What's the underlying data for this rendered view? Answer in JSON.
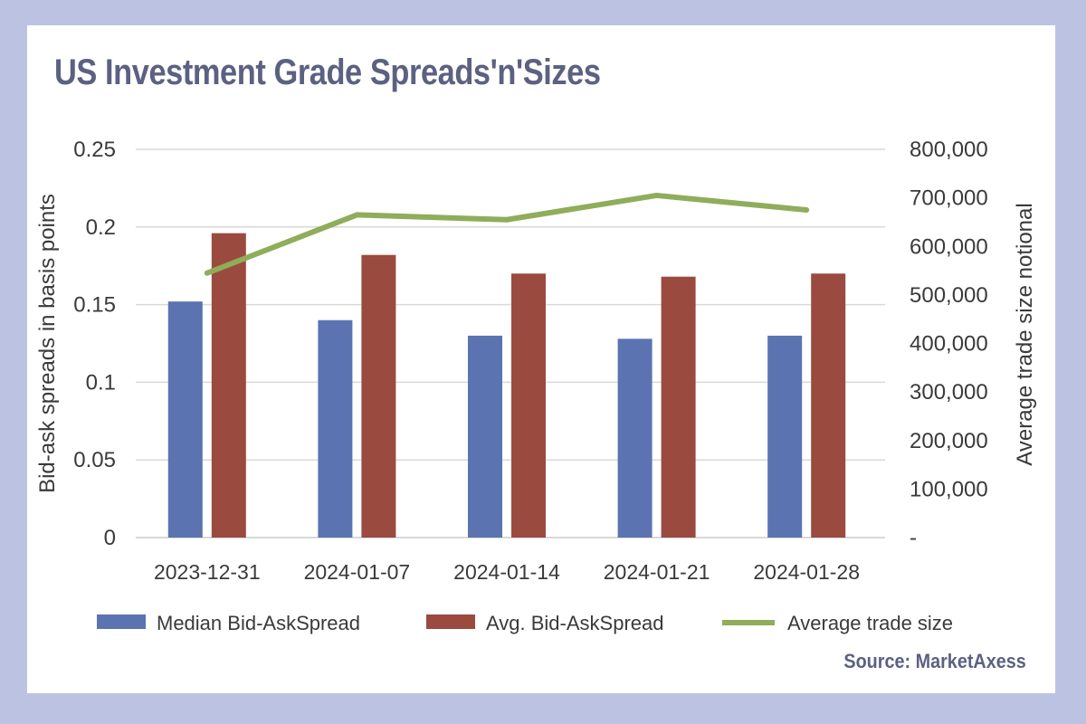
{
  "title": "US Investment Grade Spreads'n'Sizes",
  "source": "Source: MarketAxess",
  "colors": {
    "background": "#bcc3e2",
    "title": "#5c6182",
    "median": "#5b73b0",
    "avg": "#9b4a3f",
    "line": "#8fad5a",
    "grid": "#d9d9d9"
  },
  "chart_data": {
    "type": "bar",
    "categories": [
      "2023-12-31",
      "2024-01-07",
      "2024-01-14",
      "2024-01-21",
      "2024-01-28"
    ],
    "series": [
      {
        "name": "Median  Bid-AskSpread",
        "kind": "bar",
        "axis": "left",
        "values": [
          0.152,
          0.14,
          0.13,
          0.128,
          0.13
        ]
      },
      {
        "name": "Avg. Bid-AskSpread",
        "kind": "bar",
        "axis": "left",
        "values": [
          0.196,
          0.182,
          0.17,
          0.168,
          0.17
        ]
      },
      {
        "name": "Average trade size",
        "kind": "line",
        "axis": "right",
        "values": [
          545000,
          665000,
          655000,
          705000,
          675000
        ]
      }
    ],
    "ylabel": "Bid-ask spreads in basis points",
    "y2label": "Average trade size notional",
    "ylim": [
      0,
      0.25
    ],
    "y2lim": [
      0,
      800000
    ],
    "yticks": [
      "0",
      "0.05",
      "0.1",
      "0.15",
      "0.2",
      "0.25"
    ],
    "y2ticks": [
      "-",
      "100,000",
      "200,000",
      "300,000",
      "400,000",
      "500,000",
      "600,000",
      "700,000",
      "800,000"
    ],
    "grid": true,
    "legend": "bottom"
  }
}
